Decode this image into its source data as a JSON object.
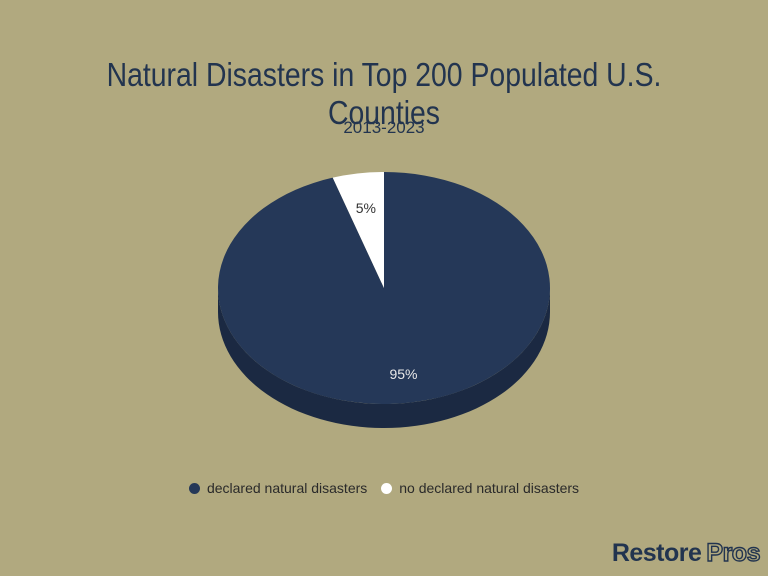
{
  "chart_data": {
    "type": "pie",
    "title": "Natural Disasters in Top 200 Populated U.S. Counties",
    "subtitle": "2013-2023",
    "slices": [
      {
        "label": "declared natural disasters",
        "value": 95,
        "data_label": "95%",
        "color": "#253858"
      },
      {
        "label": "no declared natural disasters",
        "value": 5,
        "data_label": "5%",
        "color": "#ffffff"
      }
    ],
    "legend_position": "bottom",
    "style": "3d"
  },
  "logo": {
    "word1": "Restore",
    "word2": "Pros"
  },
  "colors": {
    "background": "#b1a97f",
    "side_dark": "#1b2942"
  }
}
